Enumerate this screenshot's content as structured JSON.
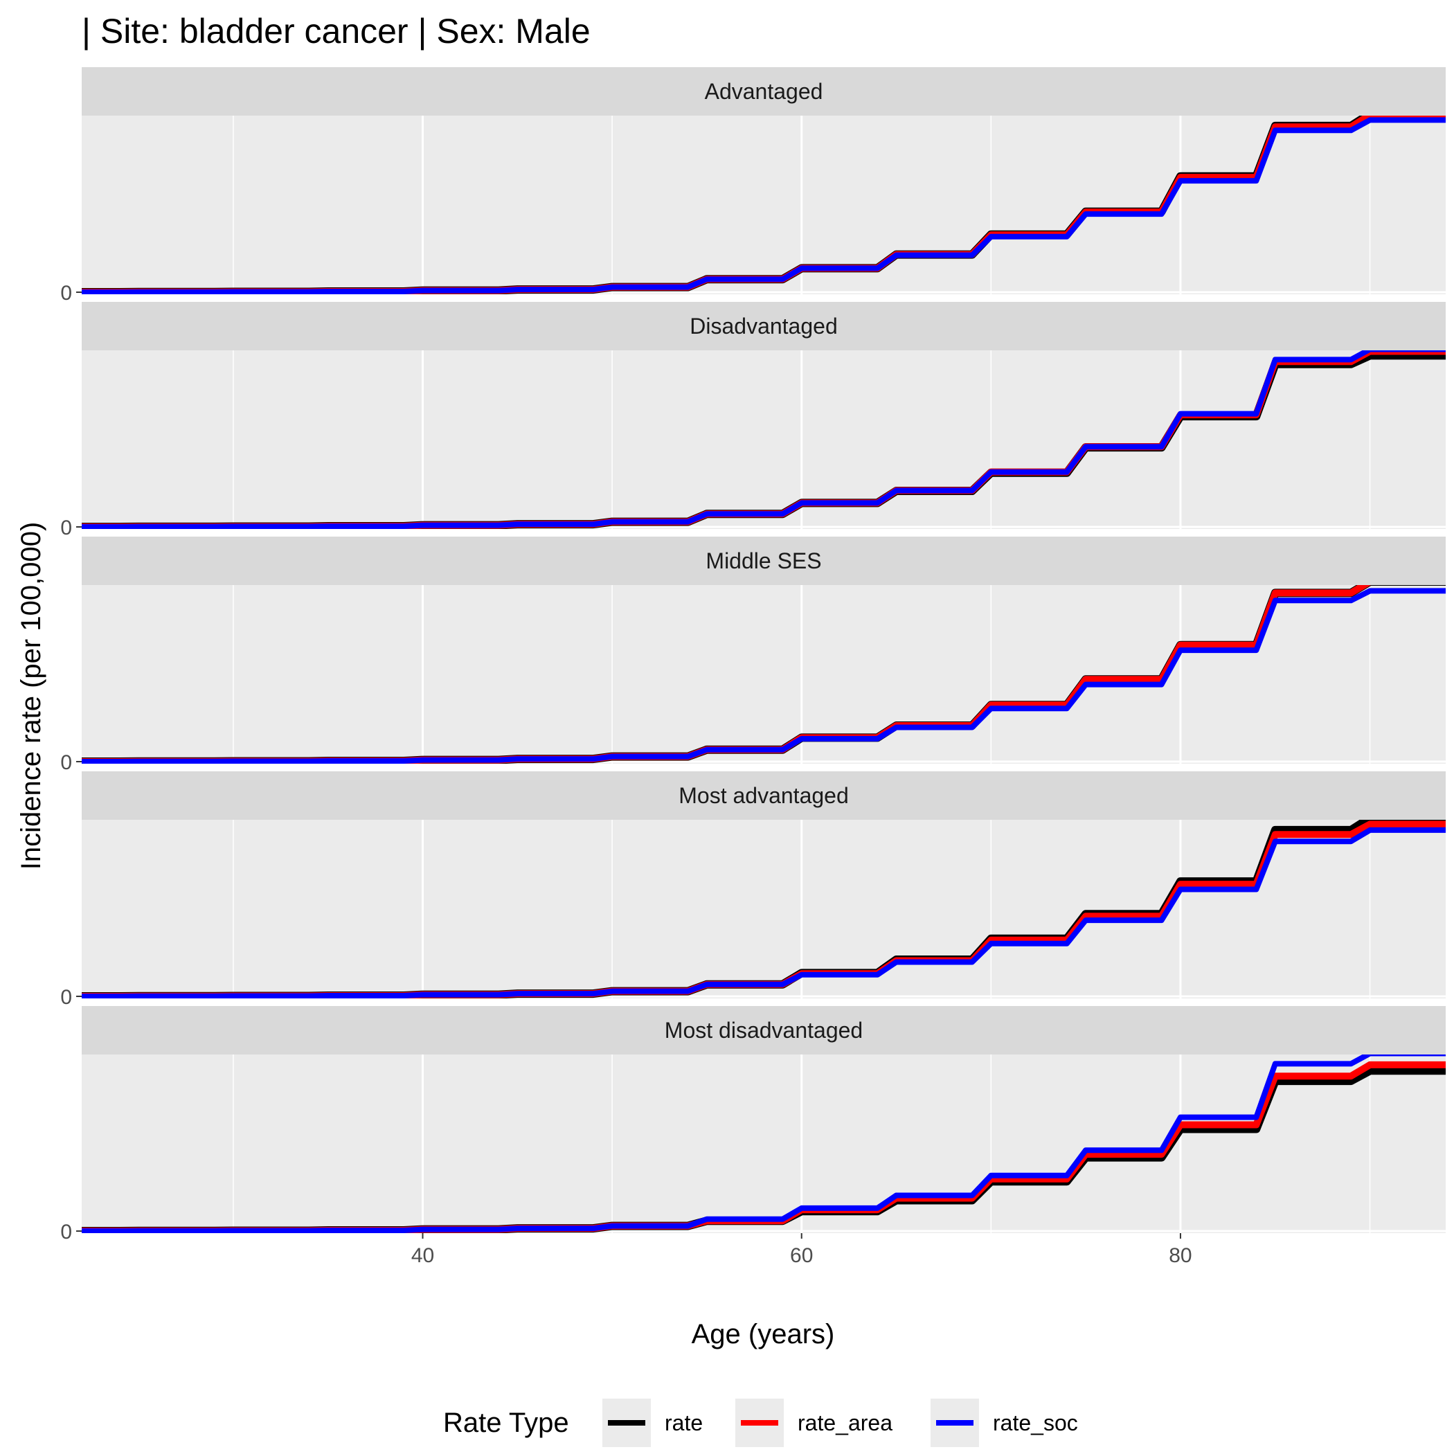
{
  "chart_data": {
    "type": "line",
    "title": "| Site: bladder cancer | Sex: Male",
    "xlabel": "Age (years)",
    "ylabel": "Incidence rate (per 100,000)",
    "xlim": [
      22,
      94
    ],
    "ylim": [
      -6,
      515
    ],
    "x_ticks": [
      40,
      60,
      80
    ],
    "x_tick_labels": [
      "40",
      "60",
      "80"
    ],
    "y_ticks": [
      0
    ],
    "y_tick_labels": [
      "0"
    ],
    "grid": true,
    "step_shape": "step",
    "legend": {
      "title": "Rate Type",
      "placement": "bottom",
      "entries": [
        {
          "name": "rate",
          "color": "#000000"
        },
        {
          "name": "rate_area",
          "color": "#ff0000"
        },
        {
          "name": "rate_soc",
          "color": "#0000ff"
        }
      ]
    },
    "age_groups": [
      22,
      25,
      30,
      35,
      40,
      45,
      50,
      55,
      60,
      65,
      70,
      75,
      80,
      85,
      90
    ],
    "panels": [
      {
        "name": "Advantaged",
        "series": [
          {
            "name": "rate",
            "color": "#000000",
            "values": [
              0,
              0.5,
              1,
              2,
              5,
              8,
              15,
              38,
              70,
              110,
              168,
              235,
              338,
              485,
              520
            ]
          },
          {
            "name": "rate_area",
            "color": "#ff0000",
            "values": [
              0,
              0.5,
              1,
              2,
              5,
              8,
              15,
              38,
              70,
              110,
              167,
              234,
              335,
              482,
              517
            ]
          },
          {
            "name": "rate_soc",
            "color": "#0000ff",
            "values": [
              0,
              0.5,
              1,
              2,
              5,
              8,
              15,
              38,
              70,
              108,
              162,
              228,
              325,
              472,
              502
            ]
          }
        ]
      },
      {
        "name": "Disadvantaged",
        "series": [
          {
            "name": "rate",
            "color": "#000000",
            "values": [
              0,
              0.5,
              1,
              2,
              5,
              8,
              15,
              38,
              70,
              105,
              158,
              232,
              323,
              475,
              500
            ]
          },
          {
            "name": "rate_area",
            "color": "#ff0000",
            "values": [
              0,
              0.5,
              1,
              2,
              5,
              8,
              15,
              38,
              70,
              106,
              160,
              234,
              327,
              482,
              512
            ]
          },
          {
            "name": "rate_soc",
            "color": "#0000ff",
            "values": [
              0,
              0.5,
              1,
              2,
              5,
              8,
              15,
              38,
              70,
              106,
              160,
              234,
              330,
              488,
              518
            ]
          }
        ]
      },
      {
        "name": "Middle SES",
        "series": [
          {
            "name": "rate",
            "color": "#000000",
            "values": [
              0,
              0.5,
              1,
              2,
              5,
              8,
              15,
              35,
              70,
              105,
              165,
              240,
              340,
              492,
              525
            ]
          },
          {
            "name": "rate_area",
            "color": "#ff0000",
            "values": [
              0,
              0.5,
              1,
              2,
              5,
              8,
              15,
              35,
              70,
              105,
              165,
              240,
              340,
              492,
              525
            ]
          },
          {
            "name": "rate_soc",
            "color": "#0000ff",
            "values": [
              0,
              0.5,
              1,
              2,
              5,
              8,
              15,
              35,
              67,
              100,
              155,
              225,
              325,
              470,
              498
            ]
          }
        ]
      },
      {
        "name": "Most advantaged",
        "series": [
          {
            "name": "rate",
            "color": "#000000",
            "values": [
              0,
              0.5,
              1,
              2,
              5,
              8,
              15,
              35,
              68,
              107,
              168,
              240,
              335,
              485,
              520
            ]
          },
          {
            "name": "rate_area",
            "color": "#ff0000",
            "values": [
              0,
              0.5,
              1,
              2,
              5,
              8,
              15,
              35,
              66,
              104,
              164,
              234,
              327,
              472,
              502
            ]
          },
          {
            "name": "rate_soc",
            "color": "#0000ff",
            "values": [
              0,
              0.5,
              1,
              2,
              5,
              8,
              15,
              35,
              63,
              100,
              154,
              222,
              312,
              452,
              485
            ]
          }
        ]
      },
      {
        "name": "Most disadvantaged",
        "series": [
          {
            "name": "rate",
            "color": "#000000",
            "values": [
              0,
              0.5,
              1,
              2,
              5,
              8,
              15,
              30,
              58,
              90,
              145,
              215,
              298,
              438,
              468
            ]
          },
          {
            "name": "rate_area",
            "color": "#ff0000",
            "values": [
              0,
              0.5,
              1,
              2,
              5,
              8,
              15,
              30,
              62,
              96,
              152,
              224,
              310,
              452,
              485
            ]
          },
          {
            "name": "rate_soc",
            "color": "#0000ff",
            "values": [
              0,
              0.5,
              1,
              2,
              5,
              8,
              15,
              35,
              67,
              104,
              162,
              236,
              332,
              488,
              518
            ]
          }
        ]
      }
    ]
  }
}
